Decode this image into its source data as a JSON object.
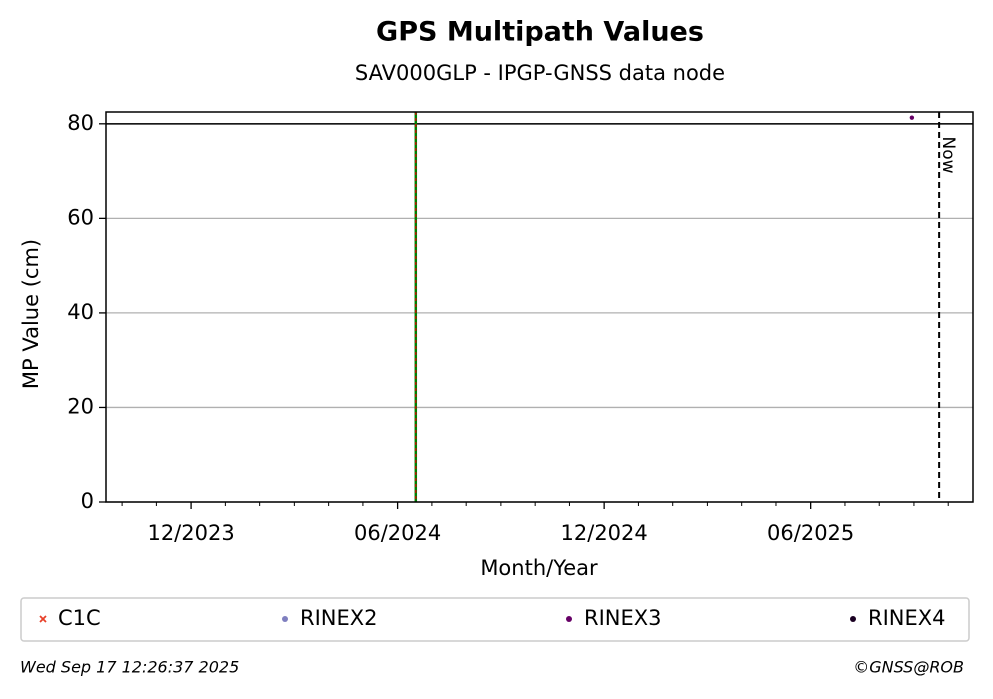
{
  "chart_data": {
    "type": "scatter",
    "title": "GPS Multipath Values",
    "subtitle": "SAV000GLP - IPGP-GNSS data node",
    "x_label": "Month/Year",
    "y_label": "MP Value (cm)",
    "xlim": [
      2023.711,
      2025.81
    ],
    "ylim": [
      0,
      82.5
    ],
    "xticks": [
      {
        "value": 2023.917,
        "label": "12/2023"
      },
      {
        "value": 2024.417,
        "label": "06/2024"
      },
      {
        "value": 2024.917,
        "label": "12/2024"
      },
      {
        "value": 2025.417,
        "label": "06/2025"
      }
    ],
    "xminorticks": [
      2023.75,
      2023.833,
      2024.0,
      2024.083,
      2024.167,
      2024.25,
      2024.333,
      2024.5,
      2024.583,
      2024.667,
      2024.75,
      2024.833,
      2025.0,
      2025.083,
      2025.167,
      2025.25,
      2025.333,
      2025.5,
      2025.583,
      2025.667,
      2025.75
    ],
    "yticks": [
      0,
      20,
      40,
      60,
      80
    ],
    "grid": true,
    "threshold": 80,
    "event_x": 2024.461,
    "now_x": 2025.728,
    "now_label": "Now",
    "series": [
      {
        "name": "C1C",
        "color": "#e8402a",
        "marker": "x",
        "x": [],
        "values": []
      },
      {
        "name": "RINEX2",
        "color": "#7f7fbf",
        "marker": "o",
        "x": [],
        "values": []
      },
      {
        "name": "RINEX3",
        "color": "#660066",
        "marker": "o",
        "x": [
          2025.662
        ],
        "values": [
          81.3
        ]
      },
      {
        "name": "RINEX4",
        "color": "#1a0022",
        "marker": "o",
        "x": [],
        "values": []
      }
    ],
    "timestamp": "Wed Sep 17 12:26:37 2025",
    "credit": "©GNSS@ROB"
  }
}
